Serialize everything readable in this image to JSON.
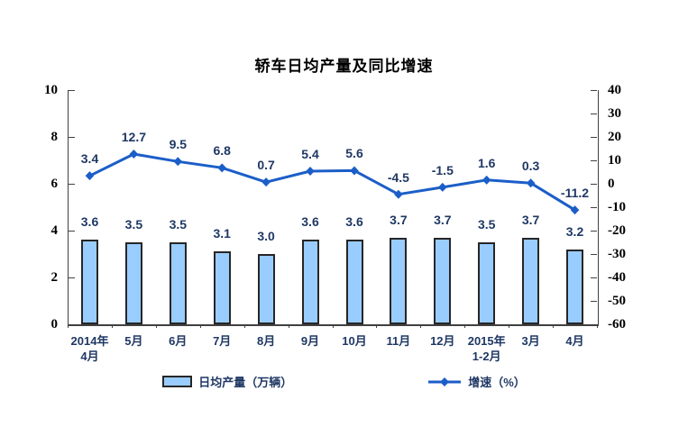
{
  "chart_data": {
    "type": "combo",
    "title": "轿车日均产量及同比增速",
    "categories": [
      [
        "2014年",
        "4月"
      ],
      [
        "5月"
      ],
      [
        "6月"
      ],
      [
        "7月"
      ],
      [
        "8月"
      ],
      [
        "9月"
      ],
      [
        "10月"
      ],
      [
        "11月"
      ],
      [
        "12月"
      ],
      [
        "2015年",
        "1-2月"
      ],
      [
        "3月"
      ],
      [
        "4月"
      ]
    ],
    "series": [
      {
        "name": "日均产量（万辆）",
        "type": "bar",
        "axis": "left",
        "values": [
          3.6,
          3.5,
          3.5,
          3.1,
          3.0,
          3.6,
          3.6,
          3.7,
          3.7,
          3.5,
          3.7,
          3.2
        ],
        "labels": [
          "3.6",
          "3.5",
          "3.5",
          "3.1",
          "3.0",
          "3.6",
          "3.6",
          "3.7",
          "3.7",
          "3.5",
          "3.7",
          "3.2"
        ]
      },
      {
        "name": "增速（%）",
        "type": "line",
        "axis": "right",
        "values": [
          3.4,
          12.7,
          9.5,
          6.8,
          0.7,
          5.4,
          5.6,
          -4.5,
          -1.5,
          1.6,
          0.3,
          -11.2
        ],
        "labels": [
          "3.4",
          "12.7",
          "9.5",
          "6.8",
          "0.7",
          "5.4",
          "5.6",
          "-4.5",
          "-1.5",
          "1.6",
          "0.3",
          "-11.2"
        ]
      }
    ],
    "left_axis": {
      "min": 0,
      "max": 10,
      "step": 2,
      "ticks": [
        0,
        2,
        4,
        6,
        8,
        10
      ]
    },
    "right_axis": {
      "min": -60,
      "max": 40,
      "step": 10,
      "ticks": [
        40,
        30,
        20,
        10,
        0,
        -10,
        -20,
        -30,
        -40,
        -50,
        -60
      ]
    },
    "grid": false,
    "legend_position": "bottom",
    "colors": {
      "bar_fill": "#99CCFF",
      "bar_border": "#262626",
      "line": "#1B5EC8",
      "data_label": "#1F3864",
      "axis": "#404040",
      "tick_label": "#000000"
    }
  }
}
